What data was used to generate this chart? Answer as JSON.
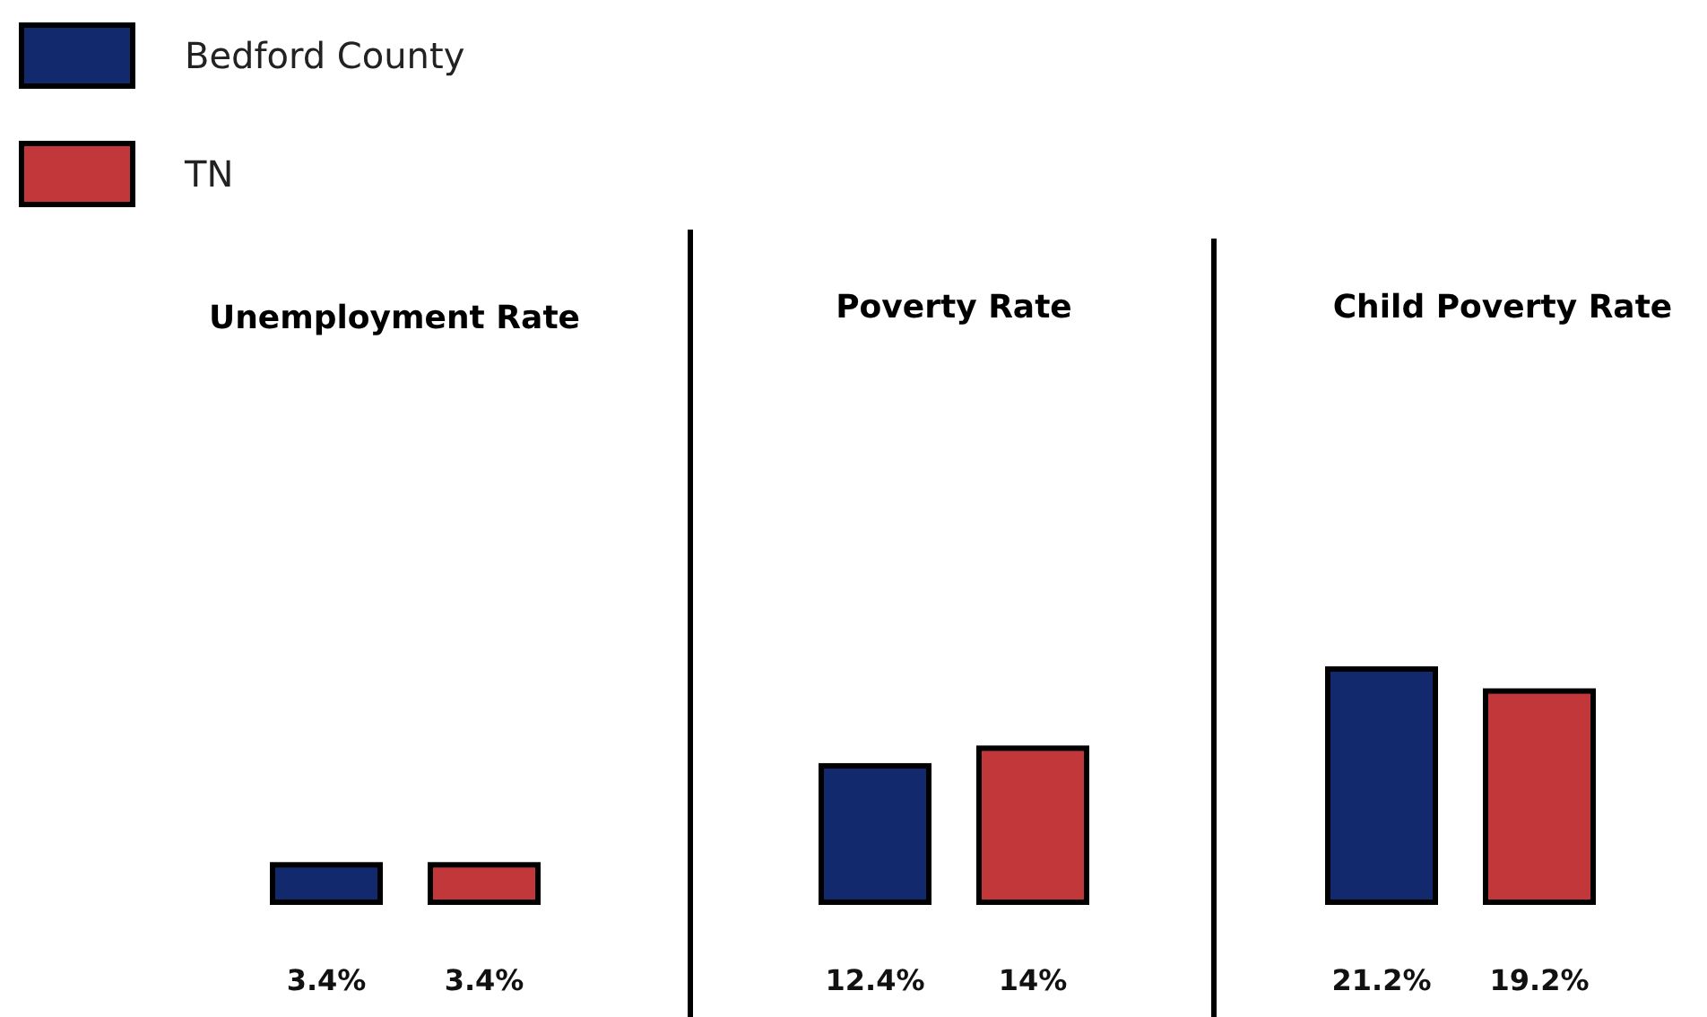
{
  "chart_data": [
    {
      "type": "bar",
      "title": "Unemployment Rate",
      "categories": [
        null
      ],
      "legend": "top left",
      "series": [
        {
          "name": "Bedford County",
          "color": "#13296e",
          "values": [
            3.4
          ],
          "value_labels": [
            "3.4%"
          ]
        },
        {
          "name": "TN",
          "color": "#c1373a",
          "values": [
            3.4
          ],
          "value_labels": [
            "3.4%"
          ]
        }
      ]
    },
    {
      "type": "bar",
      "title": "Poverty Rate",
      "categories": [
        null
      ],
      "series": [
        {
          "color": "#13296e",
          "values": [
            12.4
          ],
          "value_labels": [
            "12.4%"
          ]
        },
        {
          "color": "#c1373a",
          "values": [
            14
          ],
          "value_labels": [
            "14%"
          ]
        }
      ]
    },
    {
      "type": "bar",
      "title": "Child Poverty Rate",
      "categories": [
        null
      ],
      "series": [
        {
          "color": "#13296e",
          "values": [
            21.2
          ],
          "value_labels": [
            "21.2%"
          ]
        },
        {
          "color": "#c1373a",
          "values": [
            19.2
          ],
          "value_labels": [
            "19.2%"
          ]
        }
      ]
    }
  ]
}
